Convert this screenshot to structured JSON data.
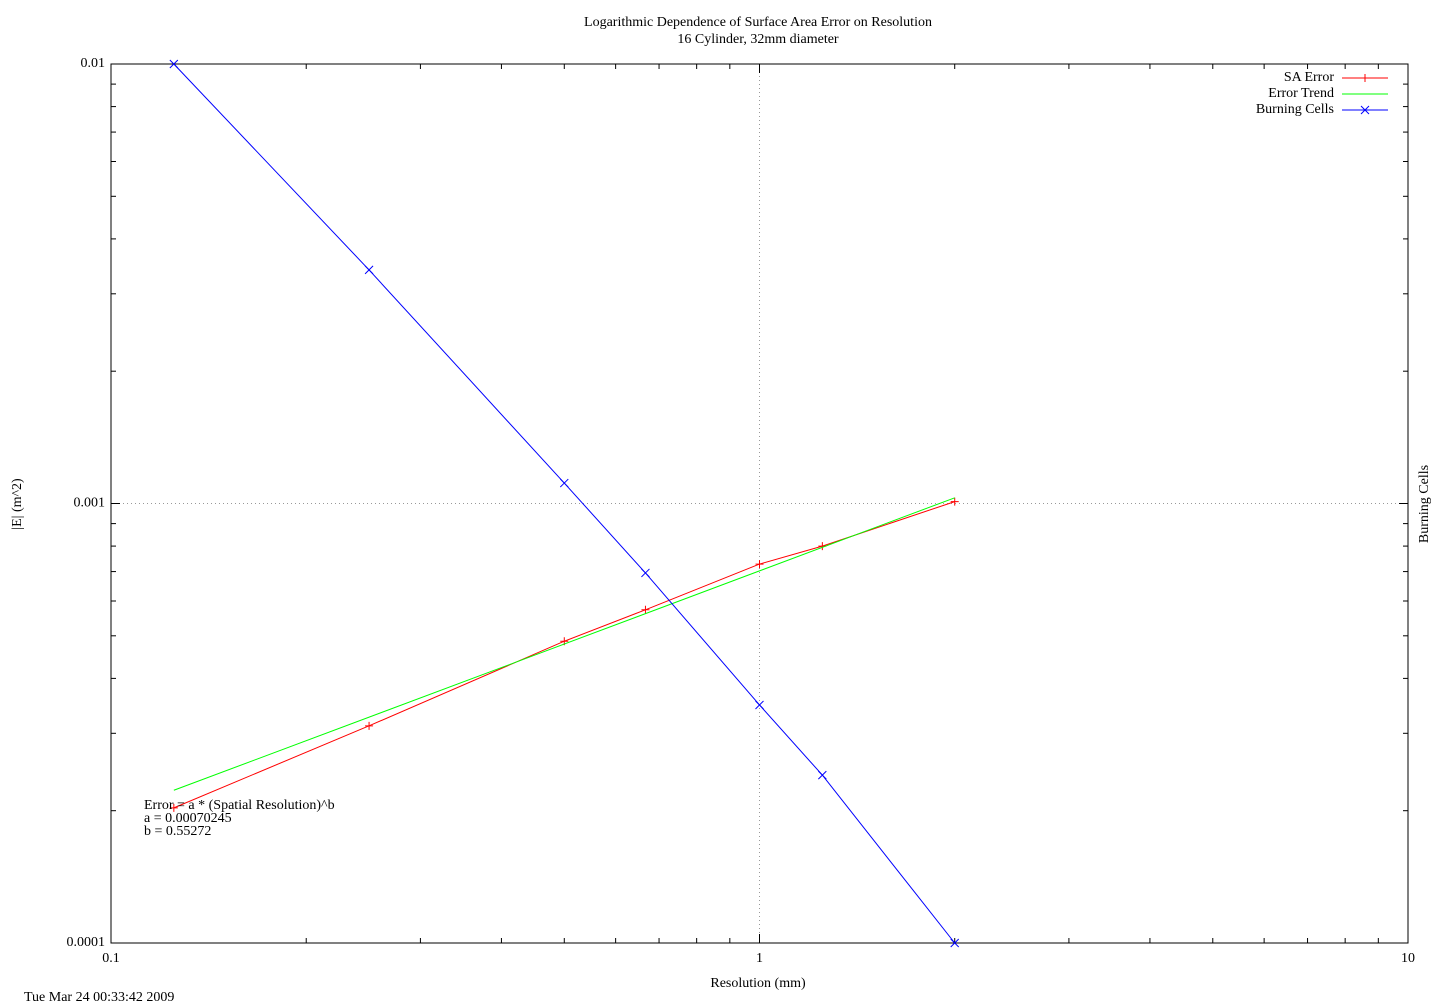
{
  "chart_data": {
    "type": "line",
    "title": "Logarithmic Dependence of Surface Area Error on Resolution",
    "subtitle": "16 Cylinder, 32mm diameter",
    "xlabel": "Resolution (mm)",
    "ylabel": "|E| (m^2)",
    "y2label": "Burning Cells",
    "xlog": true,
    "ylog": true,
    "grid": true,
    "legend": "top-right",
    "xlim": [
      0.1,
      10
    ],
    "xticks": [
      0.1,
      1,
      10
    ],
    "ylim": [
      0.0001,
      0.01
    ],
    "yticks": [
      0.0001,
      0.001,
      0.01
    ],
    "series": [
      {
        "name": "SA Error",
        "color": "#ff0000",
        "marker": "+",
        "x": [
          0.125,
          0.25,
          0.5,
          0.667,
          1,
          1.25,
          2
        ],
        "values": [
          0.000203,
          0.000312,
          0.000486,
          0.000573,
          0.000728,
          0.0008,
          0.00101
        ]
      },
      {
        "name": "Error Trend",
        "color": "#00ff00",
        "marker": null,
        "x": [
          0.125,
          2
        ],
        "values": [
          0.0002226,
          0.0010304
        ]
      },
      {
        "name": "Burning Cells",
        "color": "#0000ff",
        "marker": "x",
        "x": [
          0.125,
          0.25,
          0.5,
          0.667,
          1,
          1.25,
          2
        ],
        "values": [
          0.01,
          0.0034,
          0.001113,
          0.000695,
          0.000348,
          0.000241,
          0.0001
        ]
      }
    ],
    "annotations": [
      "Error = a * (Spatial Resolution)^b",
      "a = 0.00070245",
      "b = 0.55272"
    ],
    "timestamp": "Tue Mar 24 00:33:42 2009"
  }
}
